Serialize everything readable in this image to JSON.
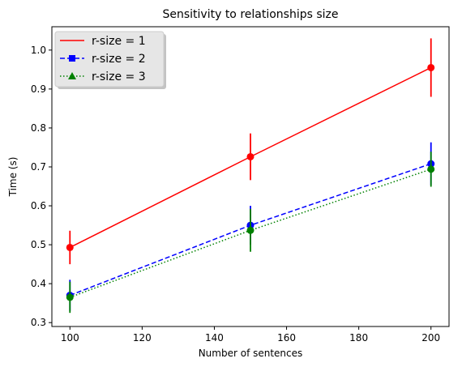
{
  "chart_data": {
    "type": "line",
    "title": "Sensitivity to relationships size",
    "xlabel": "Number of sentences",
    "ylabel": "Time (s)",
    "x": [
      100,
      150,
      200
    ],
    "xlim": [
      95,
      205
    ],
    "ylim": [
      0.29,
      1.06
    ],
    "xticks": [
      100,
      120,
      140,
      160,
      180,
      200
    ],
    "yticks": [
      0.3,
      0.4,
      0.5,
      0.6,
      0.7,
      0.8,
      0.9,
      1.0
    ],
    "ytick_labels": [
      "0.3",
      "0.4",
      "0.5",
      "0.6",
      "0.7",
      "0.8",
      "0.9",
      "1.0"
    ],
    "grid": false,
    "legend_position": "top-left",
    "series": [
      {
        "name": "r-size = 1",
        "values": [
          0.493,
          0.726,
          0.955
        ],
        "errors": [
          0.043,
          0.06,
          0.075
        ],
        "color": "#ff0000",
        "linestyle": "solid",
        "marker": "circle"
      },
      {
        "name": "r-size = 2",
        "values": [
          0.37,
          0.55,
          0.708
        ],
        "errors": [
          0.04,
          0.05,
          0.055
        ],
        "color": "#0000ff",
        "linestyle": "dashed",
        "marker": "square"
      },
      {
        "name": "r-size = 3",
        "values": [
          0.365,
          0.537,
          0.694
        ],
        "errors": [
          0.04,
          0.055,
          0.045
        ],
        "color": "#008000",
        "linestyle": "dotted",
        "marker": "triangle"
      }
    ]
  }
}
